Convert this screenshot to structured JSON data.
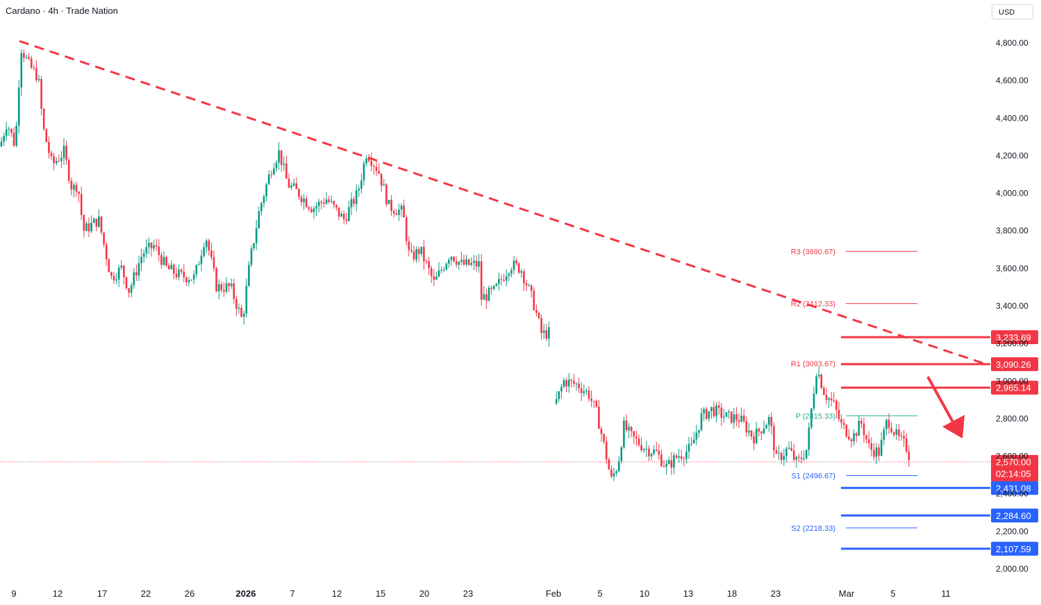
{
  "header": {
    "title": "Cardano · 4h · Trade Nation",
    "currency": "USD"
  },
  "chart_data": {
    "type": "candlestick",
    "title": "Cardano · 4h · Trade Nation",
    "ylim": [
      1950,
      4950
    ],
    "y_ticks": [
      {
        "value": 4800,
        "label": "4,800.00"
      },
      {
        "value": 4600,
        "label": "4,600.00"
      },
      {
        "value": 4400,
        "label": "4,400.00"
      },
      {
        "value": 4200,
        "label": "4,200.00"
      },
      {
        "value": 4000,
        "label": "4,000.00"
      },
      {
        "value": 3800,
        "label": "3,800.00"
      },
      {
        "value": 3600,
        "label": "3,600.00"
      },
      {
        "value": 3400,
        "label": "3,400.00"
      },
      {
        "value": 3200,
        "label": "3,200.00"
      },
      {
        "value": 3000,
        "label": "3,000.00"
      },
      {
        "value": 2800,
        "label": "2,800.00"
      },
      {
        "value": 2600,
        "label": "2,600.00"
      },
      {
        "value": 2400,
        "label": "2,400.00"
      },
      {
        "value": 2200,
        "label": "2,200.00"
      },
      {
        "value": 2000,
        "label": "2,000.00"
      }
    ],
    "x_ticks": [
      {
        "label": "9",
        "bold": false
      },
      {
        "label": "12",
        "bold": false
      },
      {
        "label": "17",
        "bold": false
      },
      {
        "label": "22",
        "bold": false
      },
      {
        "label": "26",
        "bold": false
      },
      {
        "label": "2026",
        "bold": true
      },
      {
        "label": "7",
        "bold": false
      },
      {
        "label": "12",
        "bold": false
      },
      {
        "label": "15",
        "bold": false
      },
      {
        "label": "20",
        "bold": false
      },
      {
        "label": "23",
        "bold": false
      },
      {
        "label": "Feb",
        "bold": false
      },
      {
        "label": "5",
        "bold": false
      },
      {
        "label": "10",
        "bold": false
      },
      {
        "label": "13",
        "bold": false
      },
      {
        "label": "18",
        "bold": false
      },
      {
        "label": "23",
        "bold": false
      },
      {
        "label": "Mar",
        "bold": false
      },
      {
        "label": "5",
        "bold": false
      },
      {
        "label": "11",
        "bold": false
      }
    ],
    "price_path": [
      {
        "t": 0,
        "v": 4250
      },
      {
        "t": 10,
        "v": 4380
      },
      {
        "t": 22,
        "v": 4250
      },
      {
        "t": 30,
        "v": 4780
      },
      {
        "t": 42,
        "v": 4680
      },
      {
        "t": 55,
        "v": 4620
      },
      {
        "t": 62,
        "v": 4350
      },
      {
        "t": 75,
        "v": 4150
      },
      {
        "t": 92,
        "v": 4220
      },
      {
        "t": 104,
        "v": 4020
      },
      {
        "t": 112,
        "v": 4050
      },
      {
        "t": 120,
        "v": 3800
      },
      {
        "t": 142,
        "v": 3860
      },
      {
        "t": 160,
        "v": 3550
      },
      {
        "t": 175,
        "v": 3600
      },
      {
        "t": 186,
        "v": 3480
      },
      {
        "t": 205,
        "v": 3680
      },
      {
        "t": 222,
        "v": 3720
      },
      {
        "t": 240,
        "v": 3600
      },
      {
        "t": 260,
        "v": 3560
      },
      {
        "t": 280,
        "v": 3550
      },
      {
        "t": 296,
        "v": 3780
      },
      {
        "t": 312,
        "v": 3500
      },
      {
        "t": 332,
        "v": 3500
      },
      {
        "t": 349,
        "v": 3320
      },
      {
        "t": 360,
        "v": 3640
      },
      {
        "t": 374,
        "v": 3920
      },
      {
        "t": 392,
        "v": 4150
      },
      {
        "t": 402,
        "v": 4220
      },
      {
        "t": 414,
        "v": 4050
      },
      {
        "t": 430,
        "v": 4000
      },
      {
        "t": 450,
        "v": 3920
      },
      {
        "t": 470,
        "v": 3970
      },
      {
        "t": 495,
        "v": 3860
      },
      {
        "t": 515,
        "v": 4000
      },
      {
        "t": 528,
        "v": 4220
      },
      {
        "t": 545,
        "v": 4120
      },
      {
        "t": 560,
        "v": 3930
      },
      {
        "t": 580,
        "v": 3900
      },
      {
        "t": 590,
        "v": 3650
      },
      {
        "t": 605,
        "v": 3700
      },
      {
        "t": 625,
        "v": 3520
      },
      {
        "t": 648,
        "v": 3680
      },
      {
        "t": 665,
        "v": 3620
      },
      {
        "t": 690,
        "v": 3620
      },
      {
        "t": 693,
        "v": 3440
      },
      {
        "t": 712,
        "v": 3480
      },
      {
        "t": 735,
        "v": 3620
      },
      {
        "t": 750,
        "v": 3600
      },
      {
        "t": 768,
        "v": 3420
      },
      {
        "t": 780,
        "v": 3250
      },
      {
        "t": 795,
        "v": 3260
      },
      {
        "t": 800,
        "v": 2880
      },
      {
        "t": 812,
        "v": 3000
      },
      {
        "t": 832,
        "v": 2980
      },
      {
        "t": 848,
        "v": 2930
      },
      {
        "t": 860,
        "v": 2820
      },
      {
        "t": 872,
        "v": 2620
      },
      {
        "t": 880,
        "v": 2470
      },
      {
        "t": 890,
        "v": 2560
      },
      {
        "t": 898,
        "v": 2760
      },
      {
        "t": 910,
        "v": 2700
      },
      {
        "t": 930,
        "v": 2640
      },
      {
        "t": 945,
        "v": 2620
      },
      {
        "t": 960,
        "v": 2540
      },
      {
        "t": 975,
        "v": 2600
      },
      {
        "t": 995,
        "v": 2640
      },
      {
        "t": 1010,
        "v": 2810
      },
      {
        "t": 1025,
        "v": 2850
      },
      {
        "t": 1045,
        "v": 2810
      },
      {
        "t": 1065,
        "v": 2800
      },
      {
        "t": 1085,
        "v": 2700
      },
      {
        "t": 1108,
        "v": 2800
      },
      {
        "t": 1118,
        "v": 2580
      },
      {
        "t": 1135,
        "v": 2640
      },
      {
        "t": 1148,
        "v": 2560
      },
      {
        "t": 1162,
        "v": 2640
      },
      {
        "t": 1170,
        "v": 2900
      },
      {
        "t": 1176,
        "v": 3070
      },
      {
        "t": 1188,
        "v": 2930
      },
      {
        "t": 1200,
        "v": 2880
      },
      {
        "t": 1212,
        "v": 2760
      },
      {
        "t": 1228,
        "v": 2700
      },
      {
        "t": 1240,
        "v": 2780
      },
      {
        "t": 1252,
        "v": 2640
      },
      {
        "t": 1266,
        "v": 2620
      },
      {
        "t": 1278,
        "v": 2800
      },
      {
        "t": 1292,
        "v": 2700
      },
      {
        "t": 1305,
        "v": 2650
      },
      {
        "t": 1312,
        "v": 2570
      }
    ],
    "trendline": {
      "from": {
        "t": 28,
        "v": 4810
      },
      "to": {
        "t": 1420,
        "v": 3090
      },
      "color": "#f23645",
      "style": "dashed"
    },
    "pivots": [
      {
        "label": "R3 (3690.67)",
        "value": 3690.67,
        "color": "#f23645"
      },
      {
        "label": "R2 (3412.33)",
        "value": 3412.33,
        "color": "#f23645"
      },
      {
        "label": "R1 (3093.67)",
        "value": 3093.67,
        "color": "#f23645"
      },
      {
        "label": "P (2815.33)",
        "value": 2815.33,
        "color": "#22ab94"
      },
      {
        "label": "S1 (2496.67)",
        "value": 2496.67,
        "color": "#2962ff"
      },
      {
        "label": "S2 (2218.33)",
        "value": 2218.33,
        "color": "#2962ff"
      }
    ],
    "levels": [
      {
        "label": "3,233.69",
        "value": 3233.69,
        "color": "#f23645"
      },
      {
        "label": "3,090.26",
        "value": 3090.26,
        "color": "#f23645"
      },
      {
        "label": "2,965.14",
        "value": 2965.14,
        "color": "#f23645"
      },
      {
        "label": "2,431.08",
        "value": 2431.08,
        "color": "#2962ff"
      },
      {
        "label": "2,284.60",
        "value": 2284.6,
        "color": "#2962ff"
      },
      {
        "label": "2,107.59",
        "value": 2107.59,
        "color": "#2962ff"
      }
    ],
    "last_price": {
      "label": "2,570.00",
      "value": 2570,
      "countdown": "02:14:05",
      "color": "#f23645"
    },
    "colors": {
      "up": "#089981",
      "down": "#f23645",
      "blue": "#2962ff",
      "pivot_green": "#22ab94"
    }
  }
}
